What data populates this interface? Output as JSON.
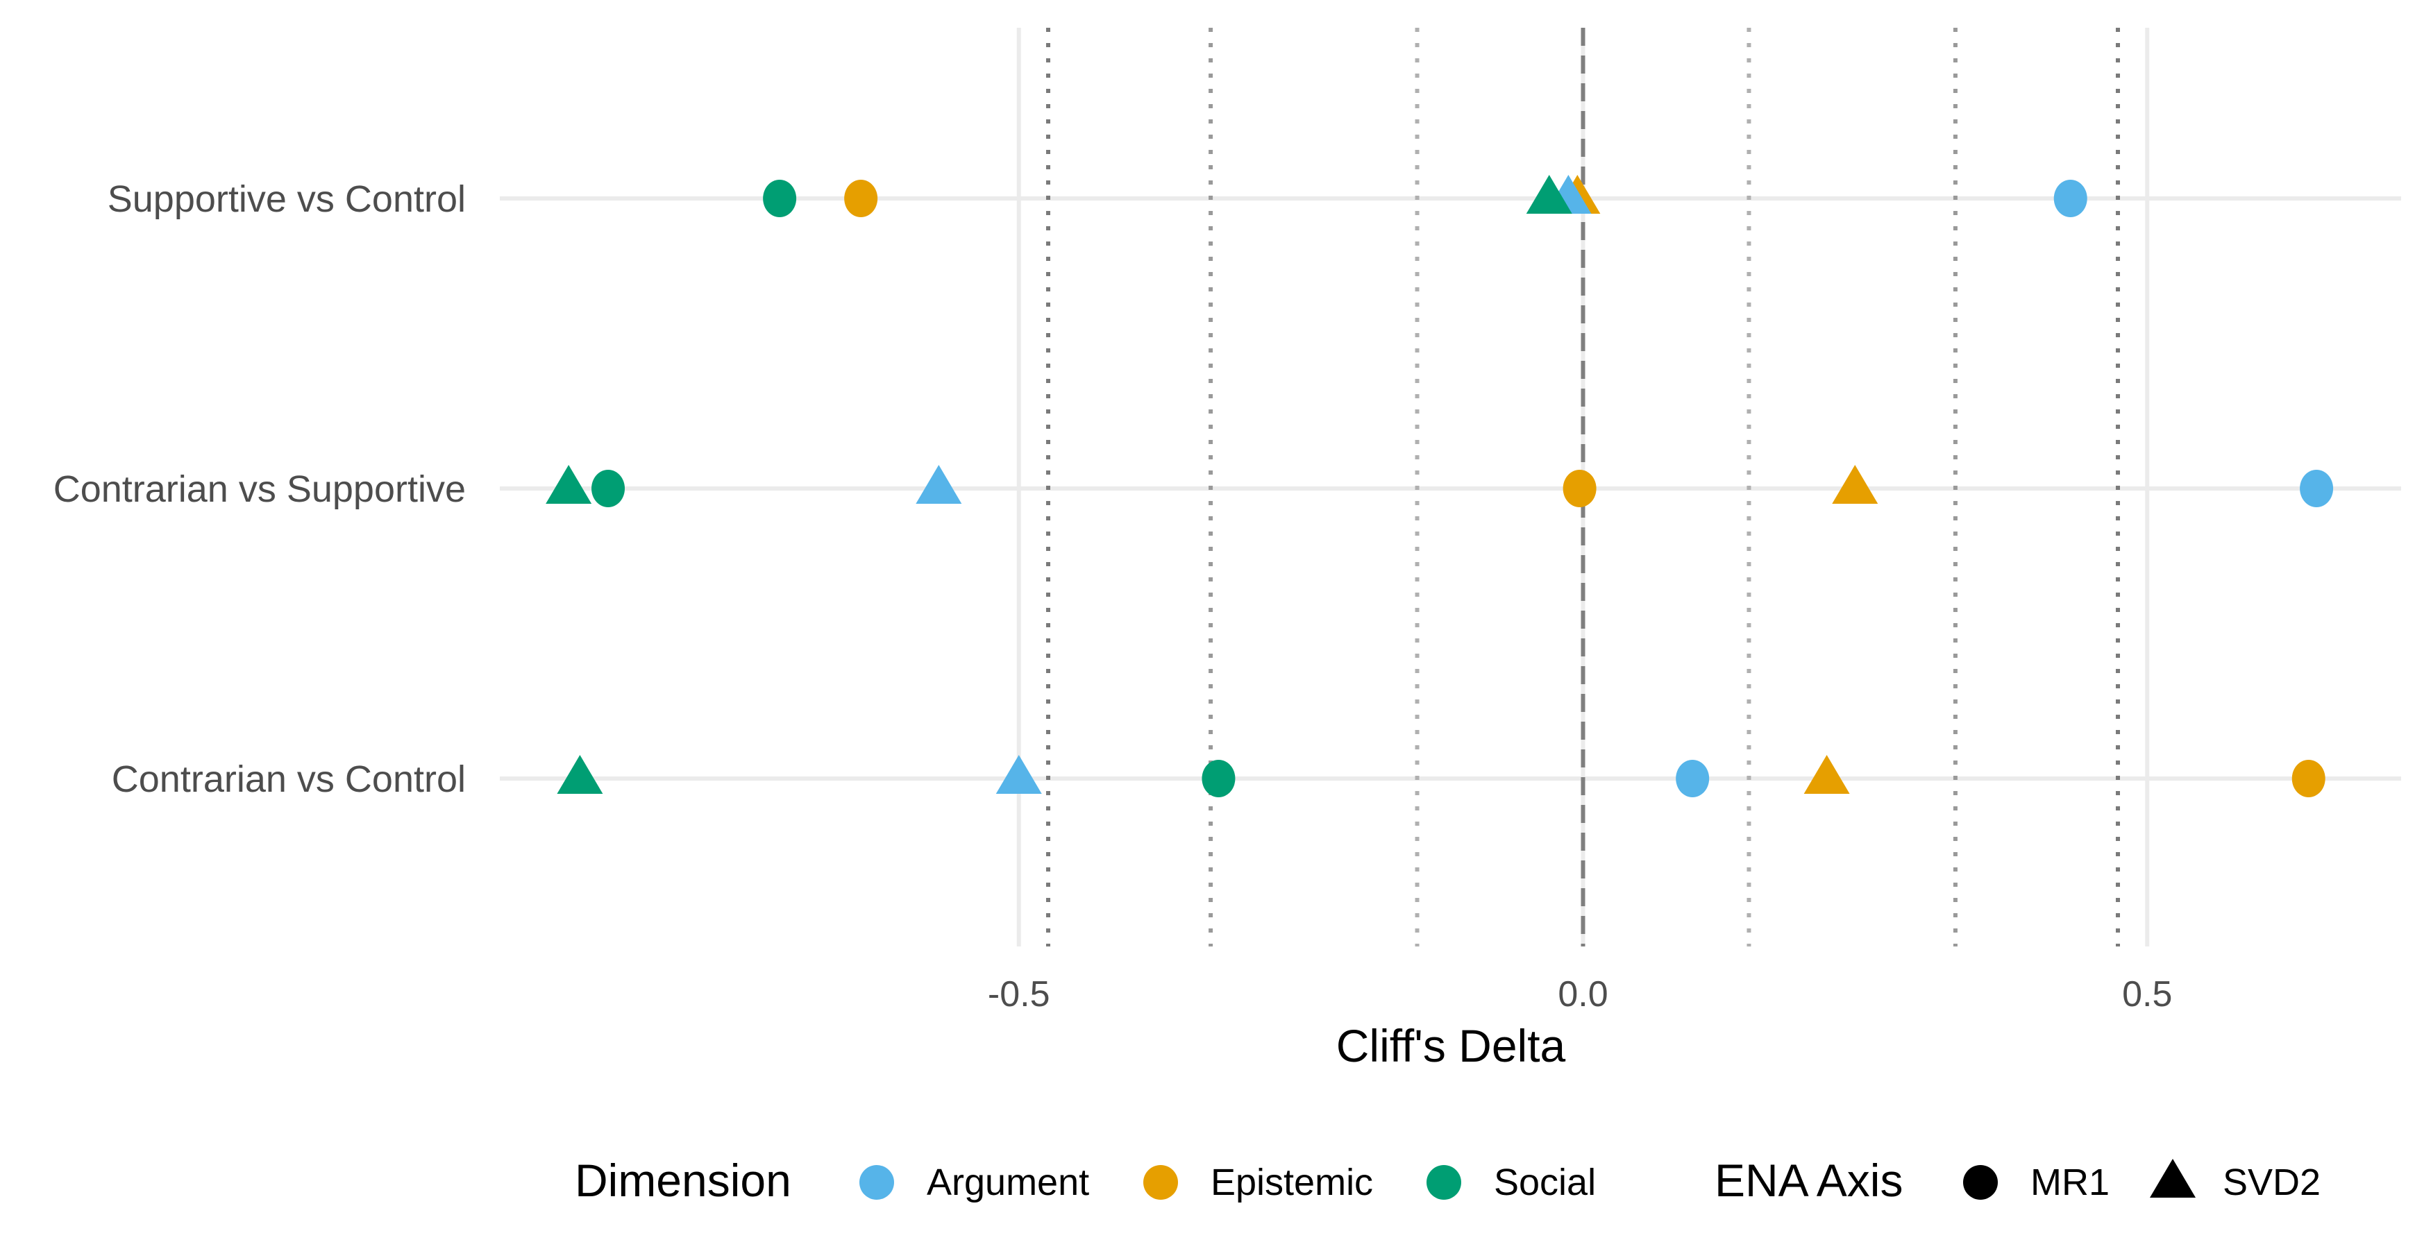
{
  "chart_data": {
    "type": "scatter",
    "title": "",
    "xlabel": "Cliff's Delta",
    "ylabel": "",
    "xlim": [
      -0.96,
      0.725
    ],
    "x_ticks": [
      -0.5,
      0.0,
      0.5
    ],
    "x_tick_labels": [
      "-0.5",
      "0.0",
      "0.5"
    ],
    "categories": [
      "Supportive vs Control",
      "Contrarian vs Supportive",
      "Contrarian vs Control"
    ],
    "grid": true,
    "reference_lines": [
      {
        "x": 0.0,
        "style": "dashed",
        "color": "#7f7f7f"
      },
      {
        "x": -0.147,
        "style": "dotted",
        "color": "#b0b0b0"
      },
      {
        "x": 0.147,
        "style": "dotted",
        "color": "#b0b0b0"
      },
      {
        "x": -0.33,
        "style": "dotted",
        "color": "#999999"
      },
      {
        "x": 0.33,
        "style": "dotted",
        "color": "#999999"
      },
      {
        "x": -0.474,
        "style": "dotted",
        "color": "#7a7a7a"
      },
      {
        "x": 0.474,
        "style": "dotted",
        "color": "#7a7a7a"
      }
    ],
    "points": [
      {
        "category": "Supportive vs Control",
        "dimension": "Social",
        "axis": "MR1",
        "x": -0.712
      },
      {
        "category": "Supportive vs Control",
        "dimension": "Epistemic",
        "axis": "MR1",
        "x": -0.64
      },
      {
        "category": "Supportive vs Control",
        "dimension": "Epistemic",
        "axis": "SVD2",
        "x": -0.005
      },
      {
        "category": "Supportive vs Control",
        "dimension": "Argument",
        "axis": "SVD2",
        "x": -0.013
      },
      {
        "category": "Supportive vs Control",
        "dimension": "Social",
        "axis": "SVD2",
        "x": -0.03
      },
      {
        "category": "Supportive vs Control",
        "dimension": "Argument",
        "axis": "MR1",
        "x": 0.432
      },
      {
        "category": "Contrarian vs Supportive",
        "dimension": "Social",
        "axis": "SVD2",
        "x": -0.899
      },
      {
        "category": "Contrarian vs Supportive",
        "dimension": "Social",
        "axis": "MR1",
        "x": -0.864
      },
      {
        "category": "Contrarian vs Supportive",
        "dimension": "Argument",
        "axis": "SVD2",
        "x": -0.571
      },
      {
        "category": "Contrarian vs Supportive",
        "dimension": "Epistemic",
        "axis": "MR1",
        "x": -0.003
      },
      {
        "category": "Contrarian vs Supportive",
        "dimension": "Epistemic",
        "axis": "SVD2",
        "x": 0.241
      },
      {
        "category": "Contrarian vs Supportive",
        "dimension": "Argument",
        "axis": "MR1",
        "x": 0.65
      },
      {
        "category": "Contrarian vs Control",
        "dimension": "Social",
        "axis": "SVD2",
        "x": -0.889
      },
      {
        "category": "Contrarian vs Control",
        "dimension": "Argument",
        "axis": "SVD2",
        "x": -0.5
      },
      {
        "category": "Contrarian vs Control",
        "dimension": "Social",
        "axis": "MR1",
        "x": -0.323
      },
      {
        "category": "Contrarian vs Control",
        "dimension": "Argument",
        "axis": "MR1",
        "x": 0.097
      },
      {
        "category": "Contrarian vs Control",
        "dimension": "Epistemic",
        "axis": "SVD2",
        "x": 0.216
      },
      {
        "category": "Contrarian vs Control",
        "dimension": "Epistemic",
        "axis": "MR1",
        "x": 0.643
      }
    ],
    "legend": {
      "placement": "bottom",
      "color_title": "Dimension",
      "colors": [
        {
          "name": "Argument",
          "color": "#56B4E9"
        },
        {
          "name": "Epistemic",
          "color": "#E69F00"
        },
        {
          "name": "Social",
          "color": "#009E73"
        }
      ],
      "shape_title": "ENA Axis",
      "shapes": [
        {
          "name": "MR1",
          "shape": "circle"
        },
        {
          "name": "SVD2",
          "shape": "triangle"
        }
      ]
    }
  }
}
